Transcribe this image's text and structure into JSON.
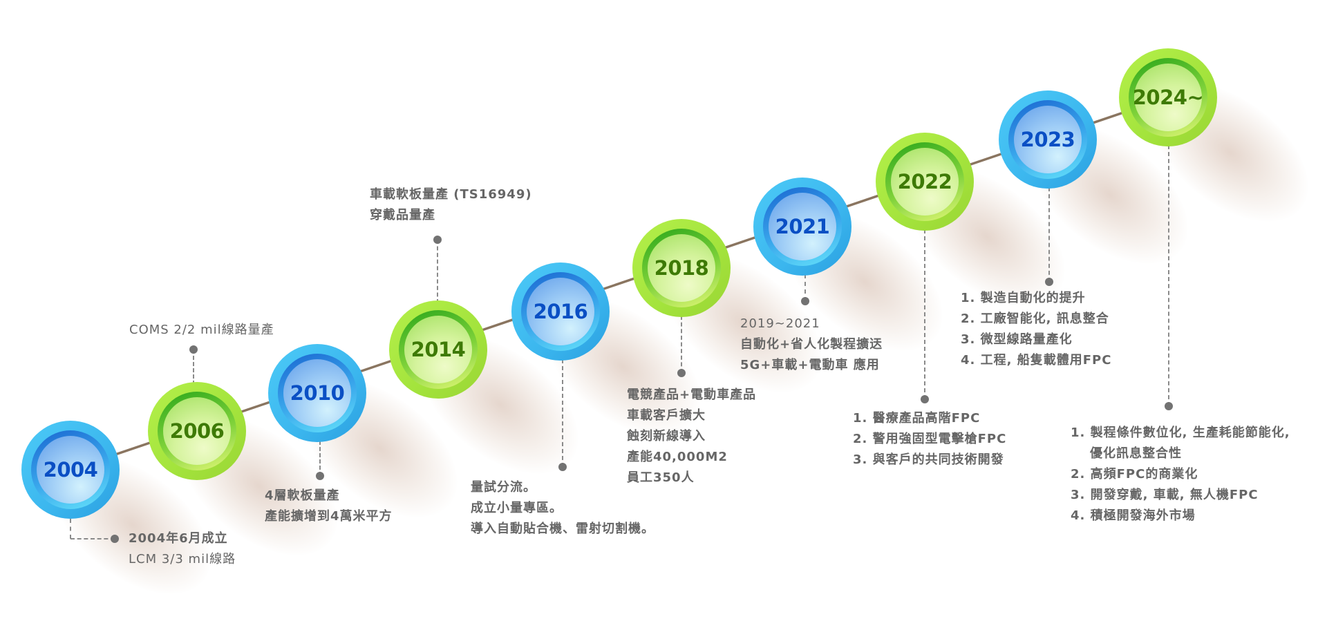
{
  "colors": {
    "blue_ring": "#3bb6ee",
    "blue_text": "#0a4fc4",
    "green_ring": "#a3e33c",
    "green_text": "#3e7a06",
    "line": "#8a7560",
    "note_text": "#666666"
  },
  "milestones": [
    {
      "year": "2004",
      "style": "blue",
      "notes": [
        {
          "text": "2004年6月成立",
          "bold": true
        },
        {
          "text": "LCM 3/3 mil線路",
          "bold": false
        }
      ]
    },
    {
      "year": "2006",
      "style": "green",
      "notes": [
        {
          "text": "COMS 2/2 mil線路量產",
          "bold": false
        }
      ]
    },
    {
      "year": "2010",
      "style": "blue",
      "notes": [
        {
          "text": "4層軟板量產",
          "bold": true
        },
        {
          "text": "產能擴增到4萬米平方",
          "bold": true
        }
      ]
    },
    {
      "year": "2014",
      "style": "green",
      "notes": [
        {
          "text": "車載軟板量產 (TS16949)",
          "bold": true
        },
        {
          "text": "穿戴品量產",
          "bold": true
        }
      ]
    },
    {
      "year": "2016",
      "style": "blue",
      "notes": [
        {
          "text": "量試分流。",
          "bold": true
        },
        {
          "text": "成立小量專區。",
          "bold": true
        },
        {
          "text": "導入自動貼合機、雷射切割機。",
          "bold": true
        }
      ]
    },
    {
      "year": "2018",
      "style": "green",
      "notes": [
        {
          "text": "電競產品+電動車產品",
          "bold": true
        },
        {
          "text": "車載客戶擴大",
          "bold": true
        },
        {
          "text": "蝕刻新線導入",
          "bold": true
        },
        {
          "text": "產能40,000M2",
          "bold": true
        },
        {
          "text": "員工350人",
          "bold": true
        }
      ]
    },
    {
      "year": "2021",
      "style": "blue",
      "notes": [
        {
          "text": "2019~2021",
          "bold": false
        },
        {
          "text": "自動化+省人化製程擴迗",
          "bold": true
        },
        {
          "text": "5G+車載+電動車 應用",
          "bold": true
        }
      ]
    },
    {
      "year": "2022",
      "style": "green",
      "notes": [
        {
          "text": "1. 醫療產品高階FPC",
          "bold": true
        },
        {
          "text": "2. 警用強固型電擊槍FPC",
          "bold": true
        },
        {
          "text": "3. 與客戶的共同技術開發",
          "bold": true
        }
      ]
    },
    {
      "year": "2023",
      "style": "blue",
      "notes": [
        {
          "text": "1. 製造自動化的提升",
          "bold": true
        },
        {
          "text": "2. 工廠智能化, 訊息整合",
          "bold": true
        },
        {
          "text": "3. 微型線路量產化",
          "bold": true
        },
        {
          "text": "4. 工程, 船隻載體用FPC",
          "bold": true
        }
      ]
    },
    {
      "year": "2024~",
      "style": "green",
      "notes": [
        {
          "text": "1. 製程條件數位化, 生產耗能節能化,",
          "bold": true
        },
        {
          "text": "優化訊息整合性",
          "bold": true,
          "indent": true
        },
        {
          "text": "2. 高頻FPC的商業化",
          "bold": true
        },
        {
          "text": "3. 開發穿戴, 車載, 無人機FPC",
          "bold": true
        },
        {
          "text": "4. 積極開發海外市場",
          "bold": true
        }
      ]
    }
  ]
}
